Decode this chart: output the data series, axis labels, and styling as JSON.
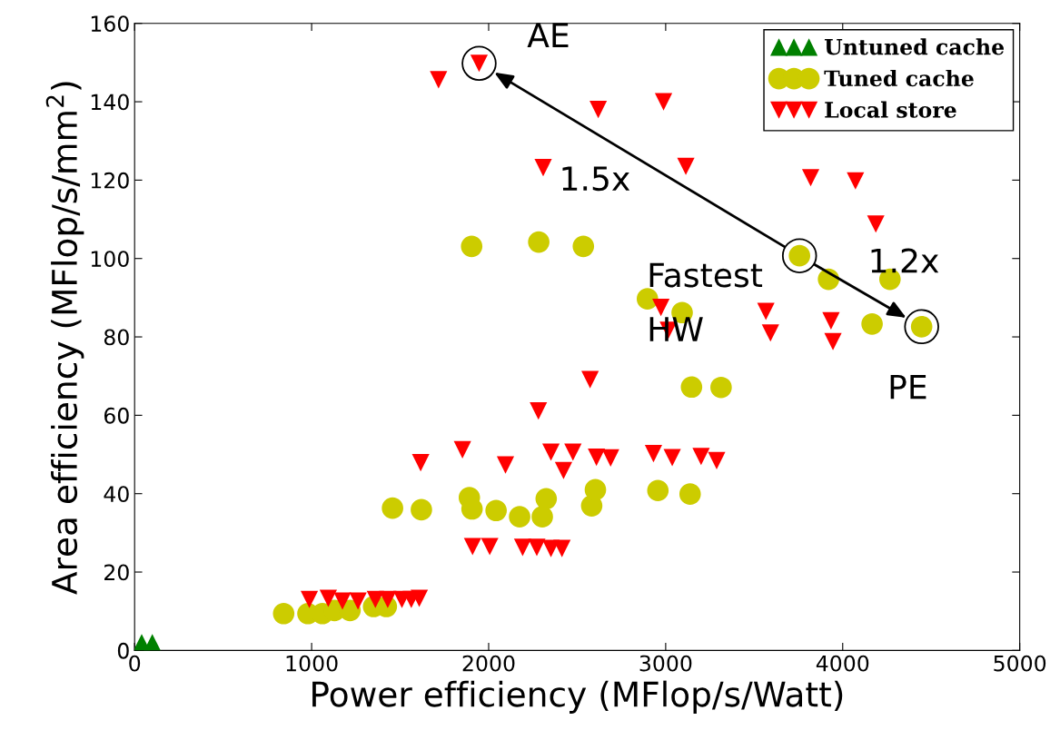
{
  "chart_data": {
    "type": "scatter",
    "xlabel": "Power efficiency (MFlop/s/Watt)",
    "ylabel": "Area efficiency (MFlop/s/mm$^{2}$)",
    "xlim": [
      0,
      5000
    ],
    "xticks": [
      0,
      1000,
      2000,
      3000,
      4000,
      5000
    ],
    "ylim": [
      0,
      160
    ],
    "yticks": [
      0,
      20,
      40,
      60,
      80,
      100,
      120,
      140,
      160
    ],
    "grid": false,
    "legend": "top right",
    "series": [
      {
        "name": "Untuned cache",
        "color": "#008000",
        "marker": "triangle",
        "x": [
          40,
          100
        ],
        "values": [
          2,
          2
        ]
      },
      {
        "name": "Tuned cache",
        "color": "#cccc00",
        "marker": "circle",
        "x": [
          842,
          979,
          1061,
          1129,
          1217,
          1350,
          1422,
          1457,
          1620,
          1891,
          1906,
          2042,
          2175,
          2303,
          2325,
          2582,
          2603,
          2956,
          3138,
          3146,
          3313,
          1904,
          2283,
          2535,
          3756,
          3920,
          4267,
          2897,
          3093,
          4166,
          4446
        ],
        "values": [
          9.4,
          9.4,
          9.4,
          10.2,
          10.2,
          11.2,
          11.2,
          36.3,
          35.9,
          39,
          36.1,
          35.7,
          34.1,
          34.1,
          38.7,
          36.9,
          41,
          40.8,
          39.9,
          67.2,
          67.1,
          103.1,
          104.2,
          103.1,
          100.7,
          94.7,
          94.7,
          89.7,
          86.2,
          83.3,
          82.6
        ]
      },
      {
        "name": "Local store",
        "color": "#ff0000",
        "marker": "triangle_down",
        "x": [
          987,
          1094,
          1174,
          1262,
          1360,
          1430,
          1510,
          1563,
          1608,
          1909,
          2006,
          2192,
          2272,
          2352,
          2414,
          1616,
          1852,
          2095,
          2281,
          2352,
          2476,
          2423,
          2609,
          2689,
          2931,
          3037,
          3200,
          3288,
          2573,
          2973,
          3015,
          3566,
          3592,
          3934,
          3945,
          4187,
          3819,
          4072,
          2308,
          3114,
          2619,
          2988,
          1717,
          1946
        ],
        "values": [
          13,
          13.3,
          12.6,
          12.6,
          13,
          13,
          13,
          13,
          13.3,
          26.5,
          26.5,
          26.3,
          26.3,
          26,
          26,
          47.9,
          51.2,
          47.3,
          61.1,
          50.6,
          50.6,
          45.9,
          49.3,
          49.1,
          50.2,
          49.2,
          49.5,
          48.4,
          69.1,
          87.5,
          81.7,
          86.5,
          81,
          84.1,
          78.8,
          108.8,
          120.6,
          119.8,
          123.2,
          123.5,
          138,
          140,
          145.6,
          149.8
        ]
      }
    ],
    "annotations": [
      {
        "text": "AE",
        "x": 1946,
        "y": 149.8
      },
      {
        "text": "Fastest\nHW",
        "x": 3756,
        "y": 100.7
      },
      {
        "text": "PE",
        "x": 4446,
        "y": 82.6
      },
      "1.5x",
      "1.2x"
    ]
  }
}
